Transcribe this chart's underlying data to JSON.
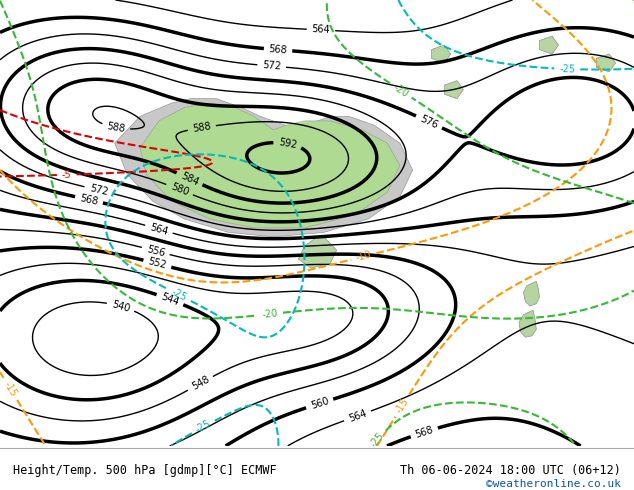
{
  "title_left": "Height/Temp. 500 hPa [gdmp][°C] ECMWF",
  "title_right": "Th 06-06-2024 18:00 UTC (06+12)",
  "credit": "©weatheronline.co.uk",
  "map_bg": "#e0e0e0",
  "land_color": "#c8c8c8",
  "green_fill": "#aade88",
  "footer_bg": "#ffffff",
  "title_color": "#000000",
  "credit_color": "#0055cc",
  "contour_color": "#000000",
  "temp_red_color": "#dd0000",
  "temp_orange_color": "#ff9900",
  "temp_green_color": "#33bb33",
  "temp_cyan_color": "#00bbbb"
}
